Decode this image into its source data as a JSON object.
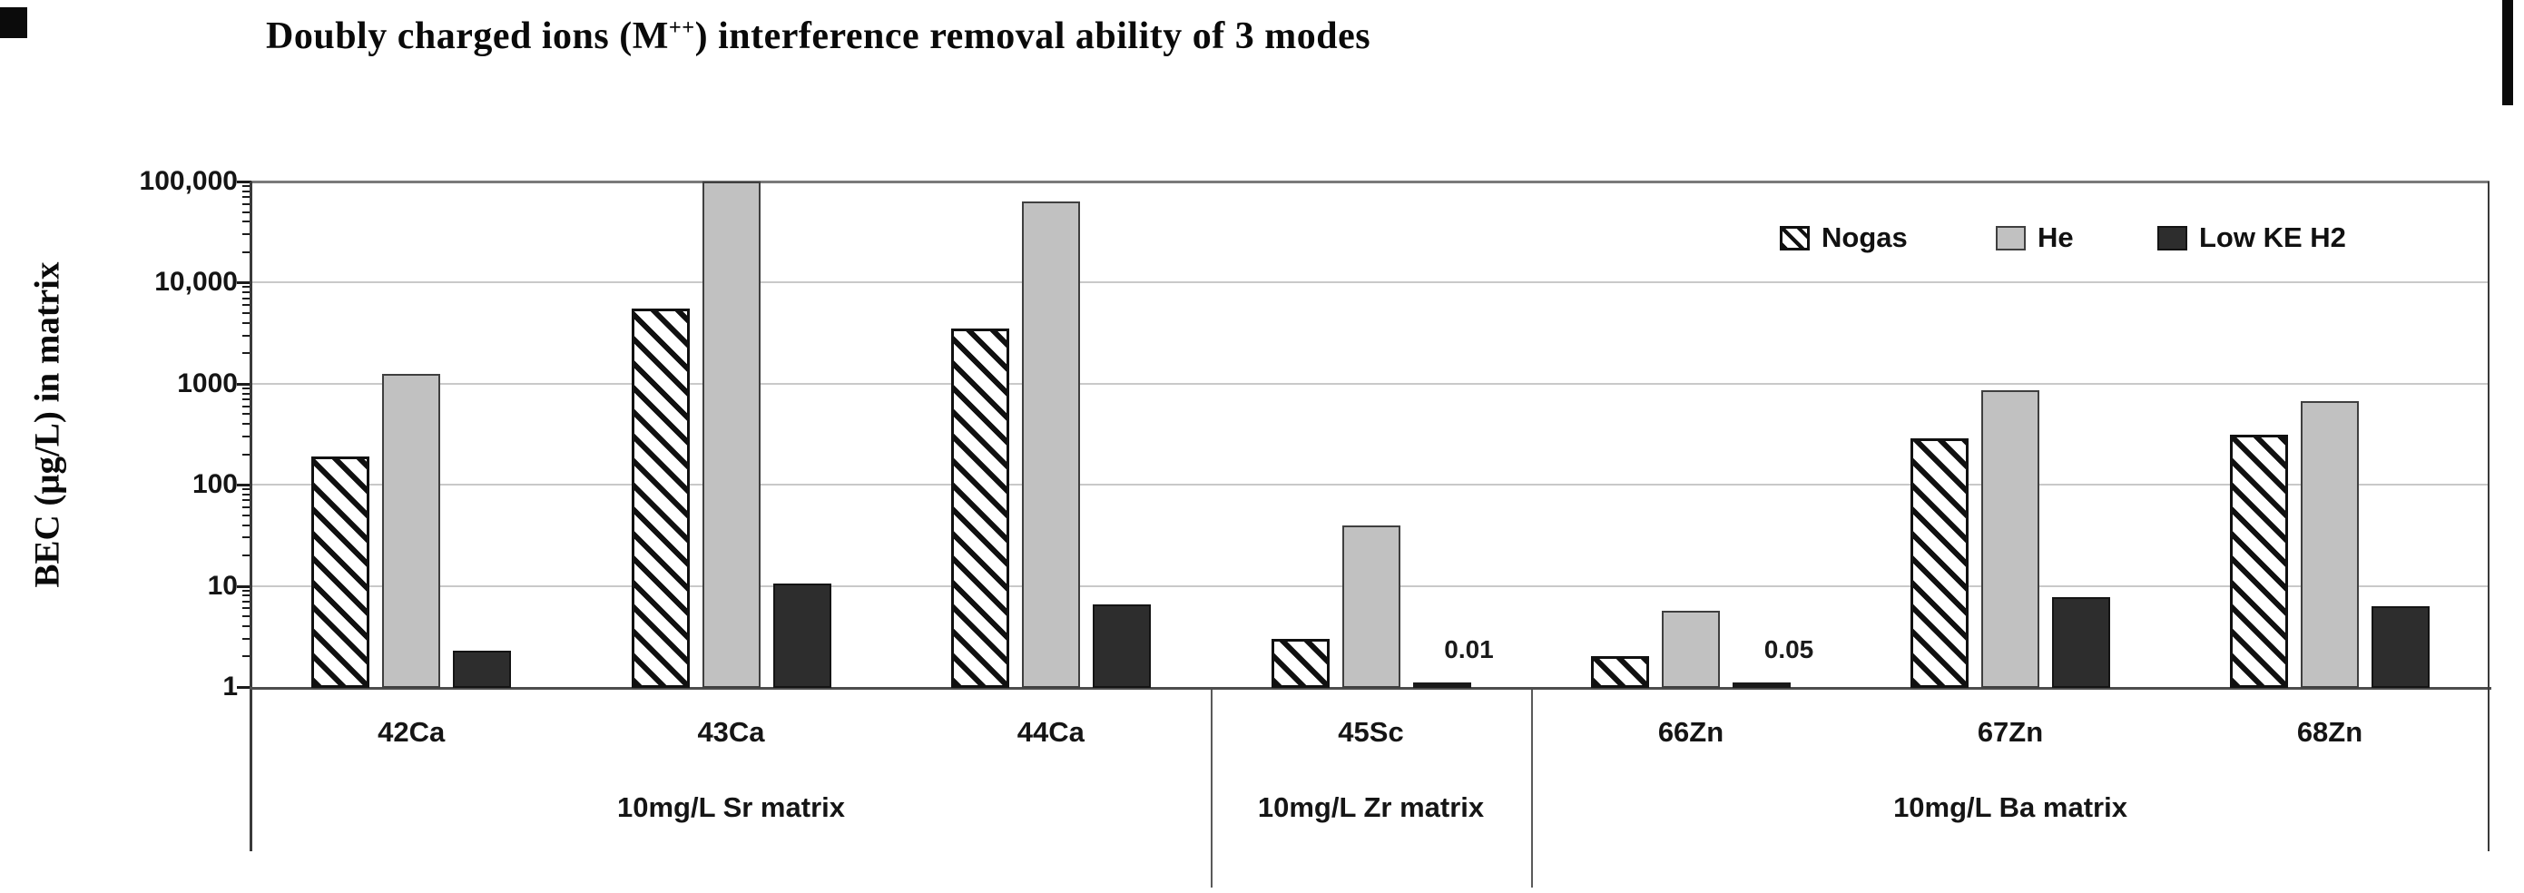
{
  "title": {
    "full": "Doubly charged ions (M++) interference removal ability of 3 modes",
    "prefix": "Doubly charged ions (M",
    "superscript": "++",
    "suffix": ") interference removal ability of 3 modes"
  },
  "chart_data": {
    "type": "bar",
    "scale": "log-y",
    "title": "Doubly charged ions (M++) interference removal ability of 3 modes",
    "xlabel": "",
    "ylabel": "BEC (μg/L) in matrix",
    "ylim": [
      1,
      100000
    ],
    "grid": true,
    "legend_position": "top-right-inside",
    "ytick_values": [
      100000,
      10000,
      1000,
      100,
      10,
      1
    ],
    "ytick_labels": [
      "100,000",
      "10,000",
      "1000",
      "100",
      "10",
      "1"
    ],
    "categories": [
      "42Ca",
      "43Ca",
      "44Ca",
      "45Sc",
      "66Zn",
      "67Zn",
      "68Zn"
    ],
    "group_labels": [
      {
        "label": "10mg/L Sr matrix",
        "span": 3
      },
      {
        "label": "10mg/L Zr matrix",
        "span": 1
      },
      {
        "label": "10mg/L Ba matrix",
        "span": 3
      }
    ],
    "series": [
      {
        "name": "Nogas",
        "style": "hatched",
        "values": [
          190,
          5500,
          3500,
          3,
          2,
          290,
          310
        ]
      },
      {
        "name": "He",
        "style": "light-gray",
        "values": [
          1250,
          100000,
          64000,
          40,
          5.7,
          860,
          670
        ]
      },
      {
        "name": "Low KE H2",
        "style": "dark",
        "values": [
          2.3,
          10.5,
          6.5,
          0.01,
          0.05,
          7.8,
          6.3
        ]
      }
    ],
    "annotations": [
      {
        "text": "0.01",
        "category": "45Sc",
        "series": "Low KE H2"
      },
      {
        "text": "0.05",
        "category": "66Zn",
        "series": "Low KE H2"
      }
    ]
  },
  "colors": {
    "bar_he_fill": "#c1c1c1",
    "bar_he_border": "#3f3f3f",
    "bar_dark_fill": "#2d2d2d",
    "bar_dark_border": "#141414",
    "bar_hatch_line": "#101010",
    "bar_hatch_bg": "#ffffff",
    "bar_hatch_border": "#111111",
    "gridline": "#c9c9c9",
    "plot_top_border": "#7a7a7a",
    "axis": "#4d4d4d",
    "divider": "#5a5a5a",
    "text": "#111111",
    "artifact": "#0b0b0b"
  }
}
